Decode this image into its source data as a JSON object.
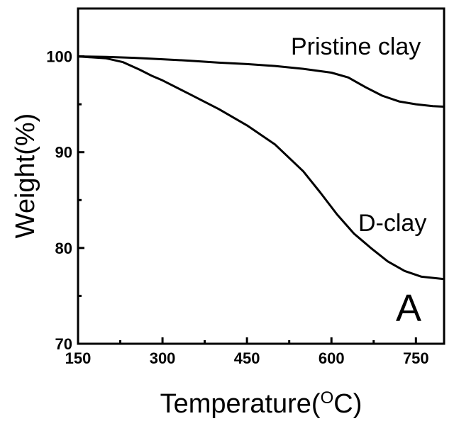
{
  "chart_data": {
    "type": "line",
    "xlabel": "Temperature(",
    "xlabel_sup": "O",
    "xlabel_end": "C)",
    "ylabel": "Weight(%)",
    "xlim": [
      150,
      800
    ],
    "ylim": [
      70,
      105
    ],
    "xticks": [
      150,
      300,
      450,
      600,
      750
    ],
    "xtick_labels": [
      "150",
      "300",
      "450",
      "600",
      "750"
    ],
    "yticks": [
      70,
      80,
      90,
      100
    ],
    "ytick_labels": [
      "70",
      "80",
      "90",
      "100"
    ],
    "panel_label": "A",
    "grid": false,
    "series": [
      {
        "name": "Pristine clay",
        "x": [
          150,
          200,
          250,
          300,
          350,
          400,
          450,
          500,
          550,
          600,
          630,
          660,
          690,
          720,
          750,
          780,
          800
        ],
        "y": [
          100.0,
          99.95,
          99.85,
          99.7,
          99.55,
          99.35,
          99.2,
          99.0,
          98.7,
          98.3,
          97.8,
          96.8,
          95.9,
          95.3,
          95.0,
          94.8,
          94.75
        ]
      },
      {
        "name": "D-clay",
        "x": [
          150,
          200,
          230,
          260,
          280,
          300,
          350,
          400,
          450,
          500,
          550,
          580,
          610,
          640,
          670,
          700,
          730,
          760,
          800
        ],
        "y": [
          100.0,
          99.8,
          99.4,
          98.6,
          98.0,
          97.5,
          96.0,
          94.5,
          92.8,
          90.8,
          88.0,
          85.8,
          83.5,
          81.5,
          80.0,
          78.6,
          77.6,
          77.0,
          76.75
        ]
      }
    ]
  }
}
